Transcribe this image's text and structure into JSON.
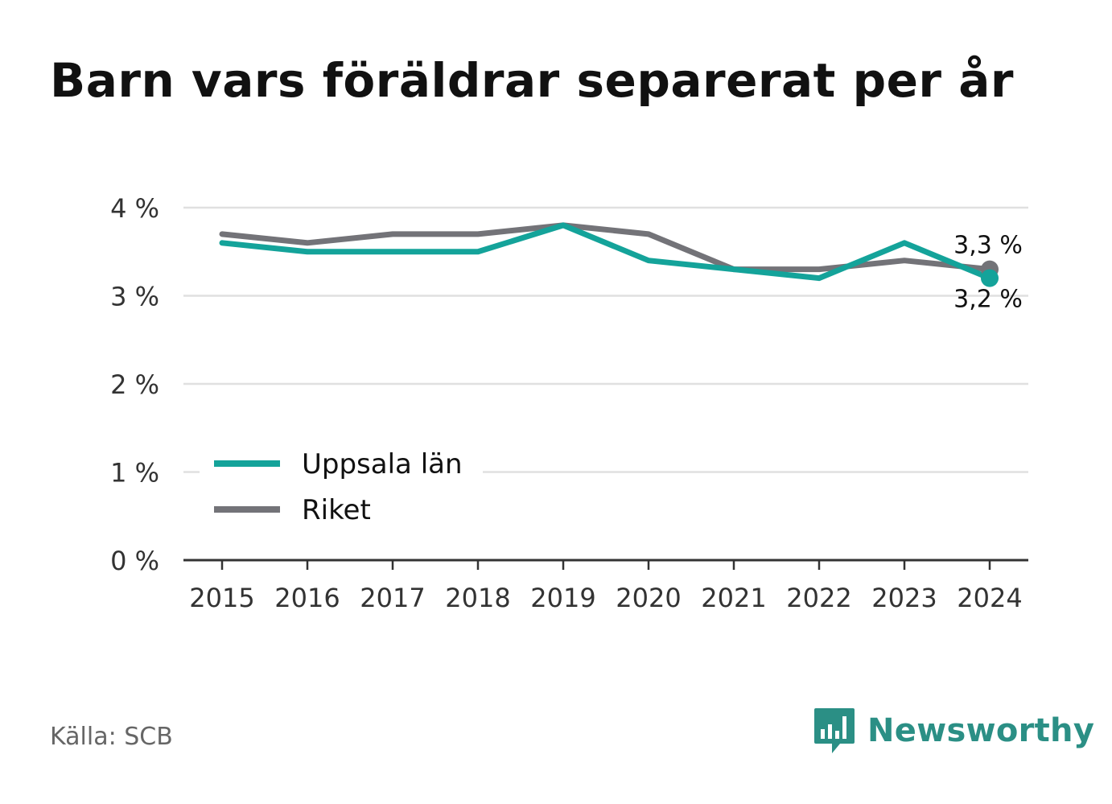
{
  "title": "Barn vars föräldrar separerat per år",
  "source": "Källa: SCB",
  "brand": {
    "name": "Newsworthy",
    "logo_icon": "bar-chart-speech-bubble-icon",
    "color": "#2b8f85"
  },
  "colors": {
    "uppsala": "#14a39a",
    "riket": "#737378",
    "grid": "#e0e0e0",
    "axis": "#333333",
    "text": "#333333"
  },
  "chart_data": {
    "type": "line",
    "title": "Barn vars föräldrar separerat per år",
    "x": [
      "2015",
      "2016",
      "2017",
      "2018",
      "2019",
      "2020",
      "2021",
      "2022",
      "2023",
      "2024"
    ],
    "ylim": [
      0,
      4
    ],
    "yticks": [
      0,
      1,
      2,
      3,
      4
    ],
    "ytick_labels": [
      "0 %",
      "1 %",
      "2 %",
      "3 %",
      "4 %"
    ],
    "grid": true,
    "legend_position": "bottom-left",
    "series": [
      {
        "name": "Uppsala län",
        "color": "#14a39a",
        "values": [
          3.6,
          3.5,
          3.5,
          3.5,
          3.8,
          3.4,
          3.3,
          3.2,
          3.6,
          3.2
        ],
        "end_label": "3,2 %"
      },
      {
        "name": "Riket",
        "color": "#737378",
        "values": [
          3.7,
          3.6,
          3.7,
          3.7,
          3.8,
          3.7,
          3.3,
          3.3,
          3.4,
          3.3
        ],
        "end_label": "3,3 %"
      }
    ]
  }
}
